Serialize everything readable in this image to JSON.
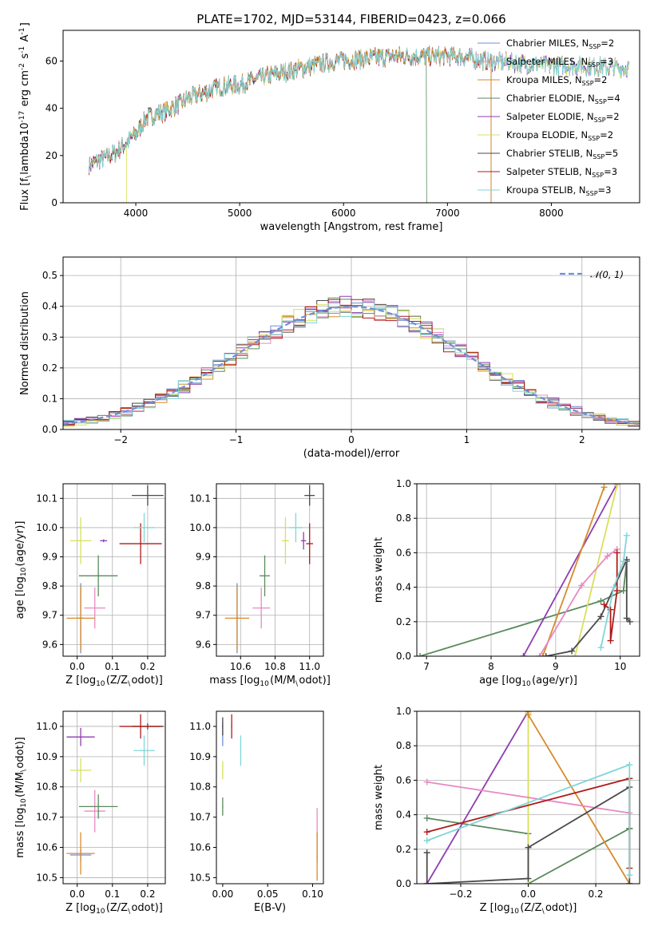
{
  "title": "PLATE=1702, MJD=53144, FIBERID=0423, z=0.066",
  "series": [
    {
      "name": "Chabrier MILES, N$_{SSP}$=2",
      "label_main": "Chabrier MILES, N",
      "label_sub": "SSP",
      "label_end": "=2",
      "color": "#6f8fd6"
    },
    {
      "name": "Salpeter MILES, N$_{SSP}$=3",
      "label_main": "Salpeter MILES, N",
      "label_sub": "SSP",
      "label_end": "=3",
      "color": "#e889c2"
    },
    {
      "name": "Kroupa MILES, N$_{SSP}$=2",
      "label_main": "Kroupa MILES, N",
      "label_sub": "SSP",
      "label_end": "=2",
      "color": "#d98a2a"
    },
    {
      "name": "Chabrier ELODIE, N$_{SSP}$=4",
      "label_main": "Chabrier ELODIE, N",
      "label_sub": "SSP",
      "label_end": "=4",
      "color": "#5a8a5c"
    },
    {
      "name": "Salpeter ELODIE, N$_{SSP}$=2",
      "label_main": "Salpeter ELODIE, N",
      "label_sub": "SSP",
      "label_end": "=2",
      "color": "#8e3db0"
    },
    {
      "name": "Kroupa ELODIE, N$_{SSP}$=2",
      "label_main": "Kroupa ELODIE, N",
      "label_sub": "SSP",
      "label_end": "=2",
      "color": "#d8e05a"
    },
    {
      "name": "Chabrier STELIB, N$_{SSP}$=5",
      "label_main": "Chabrier STELIB, N",
      "label_sub": "SSP",
      "label_end": "=5",
      "color": "#4a4a4a"
    },
    {
      "name": "Salpeter STELIB, N$_{SSP}$=3",
      "label_main": "Salpeter STELIB, N",
      "label_sub": "SSP",
      "label_end": "=3",
      "color": "#b01a1a"
    },
    {
      "name": "Kroupa STELIB, N$_{SSP}$=3",
      "label_main": "Kroupa STELIB, N",
      "label_sub": "SSP",
      "label_end": "=3",
      "color": "#7fd6d8"
    }
  ],
  "chart_data": [
    {
      "type": "line",
      "id": "spectrum",
      "xlabel": "wavelength [Angstrom, rest frame]",
      "ylabel": "Flux [f$_\\lambda$10$^{-17}$ erg cm$^{-2}$ s$^{-1}$ A$^{-1}$]",
      "xlim": [
        3300,
        8850
      ],
      "ylim": [
        0,
        73
      ],
      "xticks": [
        4000,
        5000,
        6000,
        7000,
        8000
      ],
      "yticks": [
        0,
        20,
        40,
        60
      ],
      "grid": false,
      "legend": "top-right",
      "continuum": {
        "x": [
          3550,
          3800,
          4000,
          4100,
          4300,
          4500,
          4800,
          5000,
          5300,
          5600,
          5900,
          6200,
          6500,
          6800,
          7100,
          7400,
          7700,
          8000,
          8300,
          8700
        ],
        "y": [
          16,
          21,
          29,
          36,
          39,
          44,
          49,
          50,
          54,
          57,
          60,
          61,
          62,
          62,
          62,
          60,
          59,
          58,
          58,
          57
        ]
      },
      "notes_drops": [
        {
          "series": 5,
          "x": 3910
        },
        {
          "series": 3,
          "x": 6800
        },
        {
          "series": 2,
          "x": 7420
        },
        {
          "series": 7,
          "x": 7420
        }
      ]
    },
    {
      "type": "line",
      "id": "residuals",
      "xlabel": "(data-model)/error",
      "ylabel": "Normed distribution",
      "xlim": [
        -2.5,
        2.5
      ],
      "ylim": [
        0,
        0.56
      ],
      "xticks": [
        -2,
        -1,
        0,
        1,
        2
      ],
      "yticks": [
        0.0,
        0.1,
        0.2,
        0.3,
        0.4,
        0.5
      ],
      "grid": true,
      "legend": "top-right",
      "gauss_label": "$\\mathcal{N}(0,1)$",
      "gauss_label_text": "𝒩(0, 1)",
      "gauss_color": "#6f8fd6"
    },
    {
      "type": "scatter",
      "id": "age_vs_Z",
      "xlabel": "Z [log$_{10}$(Z/Z$_\\odot$)]",
      "ylabel": "age  [log$_{10}$(age/yr)]",
      "xlim": [
        -0.04,
        0.25
      ],
      "ylim": [
        9.56,
        10.15
      ],
      "xticks": [
        0.0,
        0.1,
        0.2
      ],
      "yticks": [
        9.6,
        9.7,
        9.8,
        9.9,
        10.0,
        10.1
      ],
      "grid": true,
      "points": [
        {
          "s": 0,
          "x": 0.01,
          "y": 9.69,
          "xerr": 0.01,
          "yerr": 0.12
        },
        {
          "s": 1,
          "x": 0.05,
          "y": 9.725,
          "xerr": 0.03,
          "yerr": 0.07
        },
        {
          "s": 2,
          "x": 0.01,
          "y": 9.69,
          "xerr": 0.04,
          "yerr": 0.11
        },
        {
          "s": 3,
          "x": 0.06,
          "y": 9.835,
          "xerr": 0.055,
          "yerr": 0.07
        },
        {
          "s": 4,
          "x": 0.075,
          "y": 9.955,
          "xerr": 0.01,
          "yerr": 0.005
        },
        {
          "s": 5,
          "x": 0.01,
          "y": 9.955,
          "xerr": 0.03,
          "yerr": 0.08
        },
        {
          "s": 6,
          "x": 0.2,
          "y": 10.11,
          "xerr": 0.045,
          "yerr": 0.035
        },
        {
          "s": 7,
          "x": 0.18,
          "y": 9.945,
          "xerr": 0.06,
          "yerr": 0.07
        },
        {
          "s": 8,
          "x": 0.19,
          "y": 10.0,
          "xerr": 0.03,
          "yerr": 0.05
        }
      ]
    },
    {
      "type": "scatter",
      "id": "age_vs_mass",
      "xlabel": "mass [log$_{10}$(M/M$_\\odot$)]",
      "ylabel": "",
      "xlim": [
        10.46,
        11.08
      ],
      "ylim": [
        9.56,
        10.15
      ],
      "xticks": [
        10.6,
        10.8,
        11.0
      ],
      "yticks": [
        9.6,
        9.7,
        9.8,
        9.9,
        10.0,
        10.1
      ],
      "grid": true,
      "points": [
        {
          "s": 0,
          "x": 10.58,
          "y": 9.69,
          "xerr": 0.01,
          "yerr": 0.12
        },
        {
          "s": 1,
          "x": 10.72,
          "y": 9.725,
          "xerr": 0.05,
          "yerr": 0.07
        },
        {
          "s": 2,
          "x": 10.58,
          "y": 9.69,
          "xerr": 0.07,
          "yerr": 0.11
        },
        {
          "s": 3,
          "x": 10.74,
          "y": 9.835,
          "xerr": 0.03,
          "yerr": 0.07
        },
        {
          "s": 4,
          "x": 10.965,
          "y": 9.955,
          "xerr": 0.015,
          "yerr": 0.03
        },
        {
          "s": 5,
          "x": 10.86,
          "y": 9.955,
          "xerr": 0.02,
          "yerr": 0.08
        },
        {
          "s": 6,
          "x": 11.0,
          "y": 10.11,
          "xerr": 0.03,
          "yerr": 0.035
        },
        {
          "s": 7,
          "x": 11.0,
          "y": 9.945,
          "xerr": 0.02,
          "yerr": 0.07
        },
        {
          "s": 8,
          "x": 10.92,
          "y": 10.0,
          "xerr": 0.04,
          "yerr": 0.05
        }
      ]
    },
    {
      "type": "line",
      "id": "weight_vs_age",
      "xlabel": "age  [log$_{10}$(age/yr)]",
      "ylabel": "mass weight",
      "xlim": [
        6.85,
        10.3
      ],
      "ylim": [
        0,
        1
      ],
      "xticks": [
        7,
        8,
        9,
        10
      ],
      "yticks": [
        0.0,
        0.2,
        0.4,
        0.6,
        0.8,
        1.0
      ],
      "grid": true,
      "lines": [
        {
          "s": 3,
          "x": [
            6.9,
            9.7,
            10.05,
            10.1
          ],
          "y": [
            0.0,
            0.32,
            0.38,
            0.55
          ]
        },
        {
          "s": 4,
          "x": [
            8.5,
            9.95
          ],
          "y": [
            0.0,
            1.0
          ]
        },
        {
          "s": 5,
          "x": [
            9.3,
            9.95
          ],
          "y": [
            0.0,
            0.99
          ]
        },
        {
          "s": 2,
          "x": [
            8.8,
            9.75
          ],
          "y": [
            0.0,
            0.98
          ]
        },
        {
          "s": 1,
          "x": [
            8.75,
            9.4,
            9.8,
            9.95
          ],
          "y": [
            0.0,
            0.41,
            0.58,
            0.62
          ]
        },
        {
          "s": 6,
          "x": [
            8.85,
            9.25,
            9.7,
            10.1,
            10.1,
            10.15
          ],
          "y": [
            0.0,
            0.03,
            0.23,
            0.56,
            0.22,
            0.2
          ]
        },
        {
          "s": 7,
          "x": [
            9.75,
            9.85,
            9.85,
            9.95,
            9.95
          ],
          "y": [
            0.3,
            0.27,
            0.09,
            0.38,
            0.6
          ]
        },
        {
          "s": 8,
          "x": [
            9.7,
            9.9,
            10.05,
            10.1
          ],
          "y": [
            0.05,
            0.4,
            0.55,
            0.7
          ]
        }
      ]
    },
    {
      "type": "scatter",
      "id": "mass_vs_Z",
      "xlabel": "Z [log$_{10}$(Z/Z$_\\odot$)]",
      "ylabel": "mass [log$_{10}$(M/M$_\\odot$)]",
      "xlim": [
        -0.04,
        0.25
      ],
      "ylim": [
        10.48,
        11.05
      ],
      "xticks": [
        0.0,
        0.1,
        0.2
      ],
      "yticks": [
        10.5,
        10.6,
        10.7,
        10.8,
        10.9,
        11.0
      ],
      "grid": true,
      "points": [
        {
          "s": 0,
          "x": 0.01,
          "y": 10.575,
          "xerr": 0.03,
          "yerr": 0.02
        },
        {
          "s": 1,
          "x": 0.05,
          "y": 10.72,
          "xerr": 0.03,
          "yerr": 0.07
        },
        {
          "s": 2,
          "x": 0.01,
          "y": 10.58,
          "xerr": 0.04,
          "yerr": 0.07
        },
        {
          "s": 3,
          "x": 0.06,
          "y": 10.735,
          "xerr": 0.055,
          "yerr": 0.04
        },
        {
          "s": 4,
          "x": 0.01,
          "y": 10.965,
          "xerr": 0.04,
          "yerr": 0.03
        },
        {
          "s": 5,
          "x": 0.01,
          "y": 10.855,
          "xerr": 0.03,
          "yerr": 0.04
        },
        {
          "s": 6,
          "x": 0.2,
          "y": 11.0,
          "xerr": 0.045,
          "yerr": 0.01
        },
        {
          "s": 7,
          "x": 0.18,
          "y": 11.0,
          "xerr": 0.06,
          "yerr": 0.04
        },
        {
          "s": 8,
          "x": 0.19,
          "y": 10.92,
          "xerr": 0.03,
          "yerr": 0.05
        }
      ]
    },
    {
      "type": "scatter",
      "id": "mass_vs_ebv",
      "xlabel": "E(B-V)",
      "ylabel": "",
      "xlim": [
        -0.007,
        0.112
      ],
      "ylim": [
        10.48,
        11.05
      ],
      "xticks": [
        0.0,
        0.05,
        0.1
      ],
      "yticks": [
        10.5,
        10.6,
        10.7,
        10.8,
        10.9,
        11.0
      ],
      "grid": false,
      "points": [
        {
          "s": 0,
          "x": 0.0,
          "y": 10.975,
          "xerr": 0,
          "yerr": 0.04
        },
        {
          "s": 1,
          "x": 0.105,
          "y": 10.64,
          "xerr": 0,
          "yerr": 0.09
        },
        {
          "s": 2,
          "x": 0.105,
          "y": 10.57,
          "xerr": 0,
          "yerr": 0.08
        },
        {
          "s": 3,
          "x": 0.0,
          "y": 10.735,
          "xerr": 0,
          "yerr": 0.03
        },
        {
          "s": 5,
          "x": 0.0,
          "y": 10.855,
          "xerr": 0,
          "yerr": 0.03
        },
        {
          "s": 6,
          "x": 0.0,
          "y": 11.0,
          "xerr": 0,
          "yerr": 0.03
        },
        {
          "s": 7,
          "x": 0.01,
          "y": 11.0,
          "xerr": 0,
          "yerr": 0.04
        },
        {
          "s": 8,
          "x": 0.02,
          "y": 10.92,
          "xerr": 0,
          "yerr": 0.05
        }
      ]
    },
    {
      "type": "line",
      "id": "weight_vs_Z",
      "xlabel": "Z [log$_{10}$(Z/Z$_\\odot$)]",
      "ylabel": "mass weight",
      "xlim": [
        -0.33,
        0.33
      ],
      "ylim": [
        0,
        1
      ],
      "xticks": [
        -0.2,
        0.0,
        0.2
      ],
      "yticks": [
        0.0,
        0.2,
        0.4,
        0.6,
        0.8,
        1.0
      ],
      "grid": true,
      "lines": [
        {
          "s": 3,
          "x": [
            -0.3,
            0.0,
            0.0,
            0.3,
            0.3
          ],
          "y": [
            0.38,
            0.29,
            0.0,
            0.32,
            0.32
          ]
        },
        {
          "s": 4,
          "x": [
            -0.3,
            0.0
          ],
          "y": [
            0.0,
            1.0
          ]
        },
        {
          "s": 5,
          "x": [
            0.0,
            0.0
          ],
          "y": [
            0.0,
            0.99
          ]
        },
        {
          "s": 2,
          "x": [
            0.0,
            0.3
          ],
          "y": [
            0.98,
            0.0
          ]
        },
        {
          "s": 1,
          "x": [
            -0.3,
            0.3
          ],
          "y": [
            0.59,
            0.41
          ]
        },
        {
          "s": 6,
          "x": [
            -0.3,
            -0.3,
            0.0,
            0.0,
            0.3,
            0.3
          ],
          "y": [
            0.18,
            0.0,
            0.03,
            0.21,
            0.56,
            0.0
          ]
        },
        {
          "s": 7,
          "x": [
            -0.3,
            0.3,
            0.3
          ],
          "y": [
            0.3,
            0.61,
            0.09
          ]
        },
        {
          "s": 8,
          "x": [
            -0.3,
            0.3,
            0.3
          ],
          "y": [
            0.25,
            0.69,
            0.05
          ]
        }
      ]
    }
  ]
}
